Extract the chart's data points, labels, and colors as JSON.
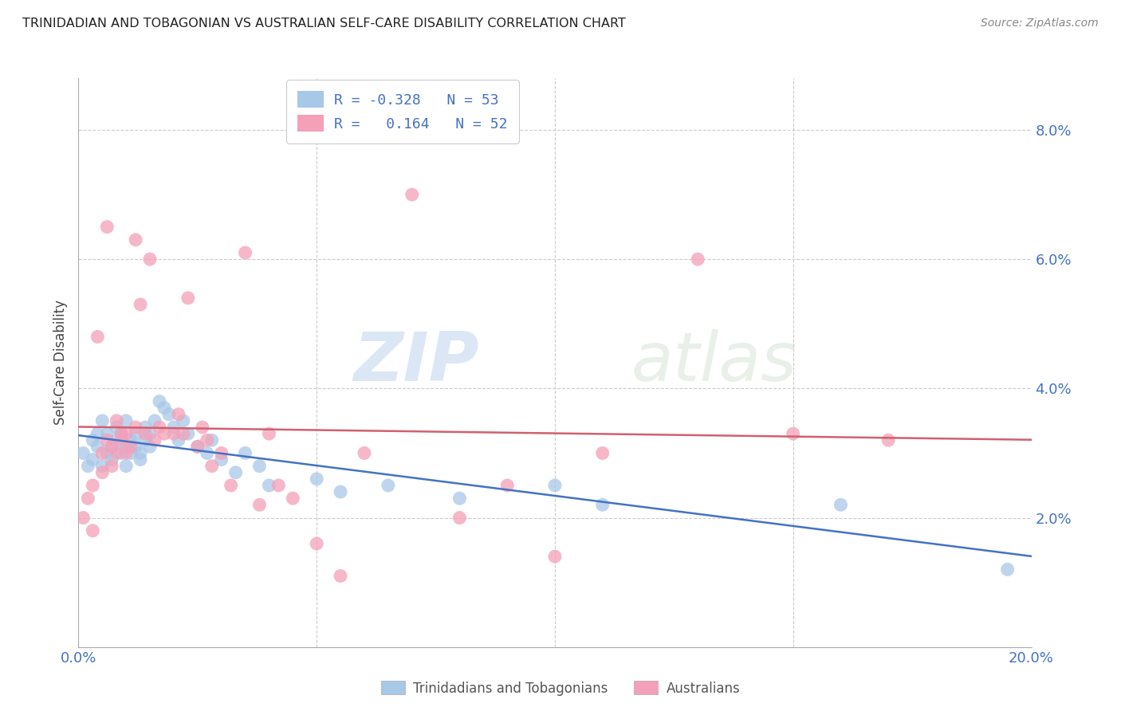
{
  "title": "TRINIDADIAN AND TOBAGONIAN VS AUSTRALIAN SELF-CARE DISABILITY CORRELATION CHART",
  "source": "Source: ZipAtlas.com",
  "ylabel": "Self-Care Disability",
  "xlim": [
    0.0,
    0.2
  ],
  "ylim": [
    0.0,
    0.088
  ],
  "xticks": [
    0.0,
    0.05,
    0.1,
    0.15,
    0.2
  ],
  "xticklabels": [
    "0.0%",
    "",
    "",
    "",
    "20.0%"
  ],
  "yticks": [
    0.0,
    0.02,
    0.04,
    0.06,
    0.08
  ],
  "yticklabels": [
    "",
    "2.0%",
    "4.0%",
    "6.0%",
    "8.0%"
  ],
  "blue_color": "#A8C8E8",
  "pink_color": "#F4A0B8",
  "blue_line_color": "#4472C4",
  "pink_line_color": "#D06070",
  "blue_R": -0.328,
  "blue_N": 53,
  "pink_R": 0.164,
  "pink_N": 52,
  "watermark_zip": "ZIP",
  "watermark_atlas": "atlas",
  "legend_label_blue": "Trinidadians and Tobagonians",
  "legend_label_pink": "Australians",
  "blue_scatter_x": [
    0.001,
    0.002,
    0.003,
    0.003,
    0.004,
    0.004,
    0.005,
    0.005,
    0.006,
    0.006,
    0.007,
    0.007,
    0.008,
    0.008,
    0.009,
    0.009,
    0.01,
    0.01,
    0.01,
    0.011,
    0.011,
    0.012,
    0.012,
    0.013,
    0.013,
    0.014,
    0.014,
    0.015,
    0.015,
    0.016,
    0.017,
    0.018,
    0.019,
    0.02,
    0.021,
    0.022,
    0.023,
    0.025,
    0.027,
    0.028,
    0.03,
    0.033,
    0.035,
    0.038,
    0.04,
    0.05,
    0.055,
    0.065,
    0.08,
    0.1,
    0.11,
    0.16,
    0.195
  ],
  "blue_scatter_y": [
    0.03,
    0.028,
    0.032,
    0.029,
    0.031,
    0.033,
    0.035,
    0.028,
    0.03,
    0.033,
    0.031,
    0.029,
    0.032,
    0.034,
    0.03,
    0.033,
    0.035,
    0.031,
    0.028,
    0.03,
    0.032,
    0.031,
    0.033,
    0.03,
    0.029,
    0.032,
    0.034,
    0.031,
    0.033,
    0.035,
    0.038,
    0.037,
    0.036,
    0.034,
    0.032,
    0.035,
    0.033,
    0.031,
    0.03,
    0.032,
    0.029,
    0.027,
    0.03,
    0.028,
    0.025,
    0.026,
    0.024,
    0.025,
    0.023,
    0.025,
    0.022,
    0.022,
    0.012
  ],
  "pink_scatter_x": [
    0.001,
    0.002,
    0.003,
    0.003,
    0.004,
    0.005,
    0.005,
    0.006,
    0.006,
    0.007,
    0.007,
    0.008,
    0.008,
    0.009,
    0.009,
    0.01,
    0.01,
    0.011,
    0.012,
    0.012,
    0.013,
    0.014,
    0.015,
    0.016,
    0.017,
    0.018,
    0.02,
    0.021,
    0.022,
    0.023,
    0.025,
    0.026,
    0.027,
    0.028,
    0.03,
    0.032,
    0.035,
    0.038,
    0.04,
    0.042,
    0.045,
    0.05,
    0.055,
    0.06,
    0.07,
    0.08,
    0.09,
    0.1,
    0.11,
    0.13,
    0.15,
    0.17
  ],
  "pink_scatter_y": [
    0.02,
    0.023,
    0.018,
    0.025,
    0.048,
    0.027,
    0.03,
    0.032,
    0.065,
    0.028,
    0.031,
    0.035,
    0.03,
    0.033,
    0.032,
    0.03,
    0.033,
    0.031,
    0.034,
    0.063,
    0.053,
    0.033,
    0.06,
    0.032,
    0.034,
    0.033,
    0.033,
    0.036,
    0.033,
    0.054,
    0.031,
    0.034,
    0.032,
    0.028,
    0.03,
    0.025,
    0.061,
    0.022,
    0.033,
    0.025,
    0.023,
    0.016,
    0.011,
    0.03,
    0.07,
    0.02,
    0.025,
    0.014,
    0.03,
    0.06,
    0.033,
    0.032
  ],
  "grid_color": "#CCCCCC",
  "title_color": "#222222",
  "axis_tick_color": "#4472C4",
  "background_color": "#FFFFFF"
}
